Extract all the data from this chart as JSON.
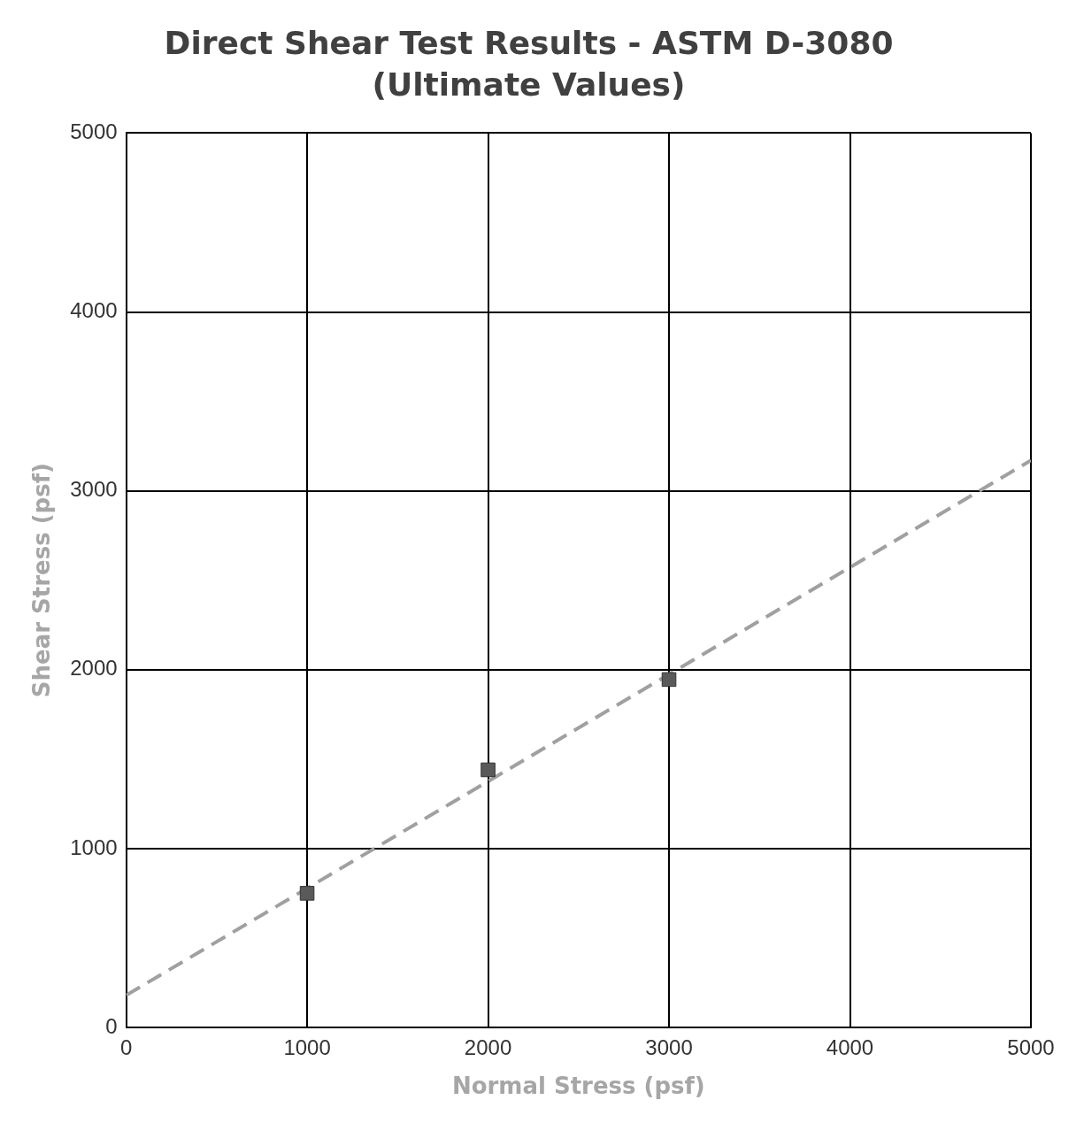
{
  "chart_data": {
    "type": "scatter",
    "title": "Direct Shear Test Results - ASTM D-3080",
    "subtitle": "(Ultimate Values)",
    "xlabel": "Normal Stress (psf)",
    "ylabel": "Shear Stress (psf)",
    "xlim": [
      0,
      5000
    ],
    "ylim": [
      0,
      5000
    ],
    "xticks": [
      0,
      1000,
      2000,
      3000,
      4000,
      5000
    ],
    "yticks": [
      0,
      1000,
      2000,
      3000,
      4000,
      5000
    ],
    "grid": true,
    "line_style": "dashed",
    "series": [
      {
        "type": "line",
        "marker": "none",
        "color": "#a0a0a0",
        "x": [
          0,
          5000
        ],
        "values": [
          180,
          3170
        ]
      },
      {
        "marker": "square",
        "color": "#5a5a5a",
        "x": [
          1000,
          2000,
          3000
        ],
        "values": [
          750,
          1440,
          1945
        ]
      }
    ]
  }
}
